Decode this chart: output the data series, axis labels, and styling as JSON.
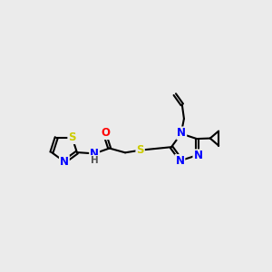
{
  "bg_color": "#ebebeb",
  "bond_color": "#000000",
  "bond_width": 1.5,
  "atom_colors": {
    "S": "#cccc00",
    "N": "#0000ff",
    "O": "#ff0000",
    "H": "#555555",
    "C": "#000000"
  },
  "font_size": 8.5,
  "fig_bg": "#ebebeb"
}
